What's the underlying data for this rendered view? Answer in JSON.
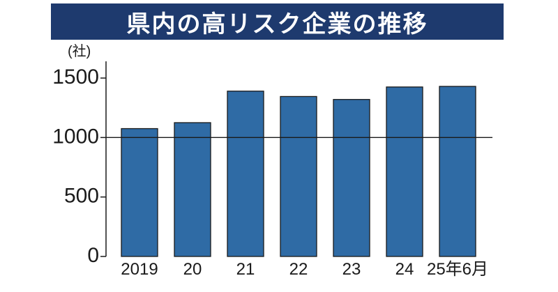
{
  "title": "県内の高リスク企業の推移",
  "colors": {
    "title_bg": "#1e3a6e",
    "bar": "#2f6ba5",
    "axis": "#1a1a1a"
  },
  "chart_data": {
    "type": "bar",
    "title": "県内の高リスク企業の推移",
    "ylabel": "(社)",
    "xlabel": "",
    "categories": [
      "2019",
      "20",
      "21",
      "22",
      "23",
      "24",
      "25年6月"
    ],
    "values": [
      1075,
      1125,
      1390,
      1345,
      1320,
      1425,
      1430
    ],
    "ylim": [
      0,
      1500
    ],
    "yticks": [
      "0",
      "500",
      "1000",
      "1500"
    ],
    "reference_line": 1000,
    "grid": false
  }
}
